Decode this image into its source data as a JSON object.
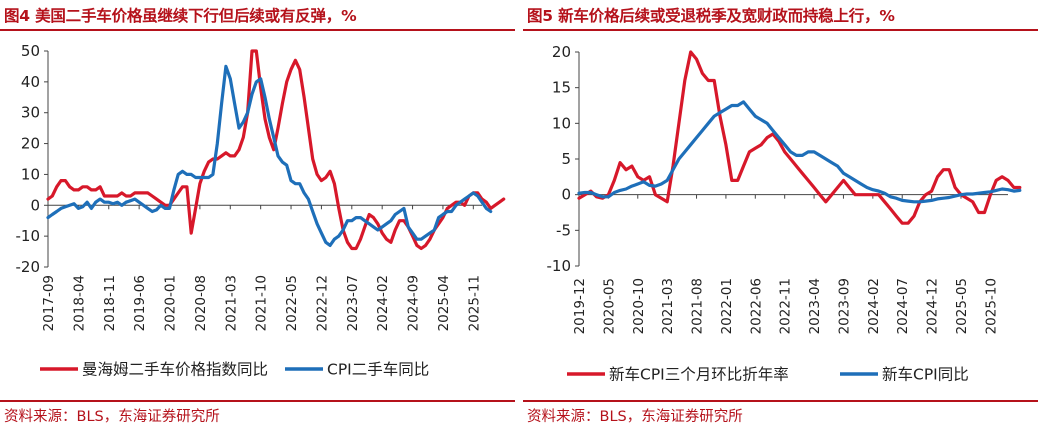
{
  "charts": [
    {
      "title": "图4  美国二手车价格虽继续下行但后续或有反弹，%",
      "source": "资料来源：BLS，东海证券研究所",
      "chart_data": {
        "type": "line",
        "ylim": [
          -20,
          50
        ],
        "yticks": [
          -20,
          -10,
          0,
          10,
          20,
          30,
          40,
          50
        ],
        "x_start": "2017-09",
        "x_end": "2026-01",
        "xticks": [
          "2017-09",
          "2018-04",
          "2018-11",
          "2019-06",
          "2020-01",
          "2020-08",
          "2021-03",
          "2021-10",
          "2022-05",
          "2022-12",
          "2023-07",
          "2024-02",
          "2024-09",
          "2025-04",
          "2025-11"
        ],
        "legend": "bottom",
        "series": [
          {
            "name": "曼海姆二手车价格指数同比",
            "color": "#d7182a",
            "values": [
              2,
              3,
              6,
              8,
              8,
              6,
              5,
              5,
              6,
              6,
              5,
              5,
              6,
              3,
              3,
              3,
              3,
              4,
              3,
              3,
              4,
              4,
              4,
              4,
              3,
              2,
              1,
              0,
              0,
              2,
              4,
              6,
              6,
              -9,
              -1,
              7,
              11,
              14,
              15,
              15,
              16,
              17,
              16,
              16,
              18,
              22,
              30,
              50,
              50,
              38,
              28,
              22,
              18,
              25,
              33,
              40,
              44,
              47,
              44,
              35,
              25,
              15,
              10,
              8,
              9,
              11,
              7,
              -1,
              -8,
              -12,
              -14,
              -14,
              -11,
              -7,
              -3,
              -4,
              -6,
              -9,
              -11,
              -12,
              -8,
              -5,
              -5,
              -7,
              -10,
              -13,
              -14,
              -13,
              -11,
              -8,
              -6,
              -4,
              -1,
              0,
              1,
              1,
              0,
              3,
              4,
              4,
              2,
              1,
              -1,
              0,
              1,
              2
            ]
          },
          {
            "name": "CPI二手车同比",
            "color": "#1e6fb9",
            "values": [
              -4,
              -3,
              -2,
              -1,
              -0.5,
              0,
              0.5,
              -1,
              -0.5,
              1,
              -1,
              1,
              2,
              1,
              1,
              0.5,
              1,
              0,
              1,
              1.5,
              2,
              1,
              0,
              -1,
              -2,
              -1.5,
              0,
              -1,
              -1,
              5,
              10,
              11,
              10,
              10,
              9,
              9,
              9,
              9,
              10,
              20,
              33,
              45,
              41,
              33,
              25,
              27,
              30,
              36,
              40,
              41,
              35,
              28,
              22,
              16,
              14,
              13,
              8,
              7,
              7,
              4,
              2,
              -2,
              -6,
              -9,
              -12,
              -13,
              -11,
              -10,
              -8,
              -5,
              -5,
              -4,
              -4,
              -5,
              -6,
              -7,
              -8,
              -7,
              -6,
              -5,
              -3,
              -2,
              -1,
              -7,
              -9,
              -11,
              -11,
              -10,
              -9,
              -8,
              -4,
              -3,
              -2,
              -2,
              0,
              1,
              2,
              3,
              4,
              3,
              1,
              -1,
              -2
            ]
          }
        ]
      }
    },
    {
      "title": "图5  新车价格后续或受退税季及宽财政而持稳上行，%",
      "source": "资料来源：BLS，东海证券研究所",
      "chart_data": {
        "type": "line",
        "ylim": [
          -10,
          20
        ],
        "yticks": [
          -10,
          -5,
          0,
          5,
          10,
          15,
          20
        ],
        "x_start": "2019-12",
        "x_end": "2026-01",
        "xticks": [
          "2019-12",
          "2020-05",
          "2020-10",
          "2021-03",
          "2021-08",
          "2022-01",
          "2022-06",
          "2022-11",
          "2023-04",
          "2023-09",
          "2024-02",
          "2024-07",
          "2024-12",
          "2025-05",
          "2025-10"
        ],
        "legend": "bottom",
        "series": [
          {
            "name": "新车CPI三个月环比折年率",
            "color": "#d7182a",
            "values": [
              -0.5,
              0,
              0.5,
              -0.3,
              -0.5,
              0,
              2,
              4.5,
              3.5,
              4,
              2.5,
              2,
              2.5,
              0,
              -0.5,
              -1,
              4,
              10,
              16,
              20,
              19,
              17,
              16,
              16,
              11,
              7,
              2,
              2,
              4,
              6,
              6.5,
              7,
              8,
              8.5,
              7.5,
              6,
              5,
              4,
              3,
              2,
              1,
              0,
              -1,
              0,
              1,
              2,
              1,
              0,
              0,
              0,
              0,
              0,
              -1,
              -2,
              -3,
              -4,
              -4,
              -3,
              -1,
              0,
              0.5,
              2.5,
              3.5,
              3.5,
              1,
              0,
              -0.5,
              -1,
              -2.5,
              -2.5,
              0,
              2,
              2.5,
              2,
              1,
              1
            ]
          },
          {
            "name": "新车CPI同比",
            "color": "#1e6fb9",
            "values": [
              0.2,
              0.3,
              0.3,
              0,
              -0.3,
              -0.3,
              0.3,
              0.6,
              0.8,
              1.2,
              1.5,
              1.8,
              1.3,
              1.2,
              1.5,
              2,
              3.5,
              5,
              6,
              7,
              8,
              9,
              10,
              11,
              11.5,
              12,
              12.5,
              12.5,
              13,
              12,
              11,
              10.5,
              10,
              9,
              8,
              7,
              6,
              5.5,
              5.5,
              6,
              6,
              5.5,
              5,
              4.5,
              4,
              3,
              2.5,
              2,
              1.5,
              1,
              0.7,
              0.5,
              0.2,
              -0.3,
              -0.5,
              -0.8,
              -0.9,
              -1,
              -1,
              -0.9,
              -0.8,
              -0.6,
              -0.5,
              -0.4,
              -0.2,
              0,
              0.1,
              0.1,
              0.2,
              0.3,
              0.4,
              0.6,
              0.8,
              0.7,
              0.5,
              0.6
            ]
          }
        ]
      }
    }
  ]
}
